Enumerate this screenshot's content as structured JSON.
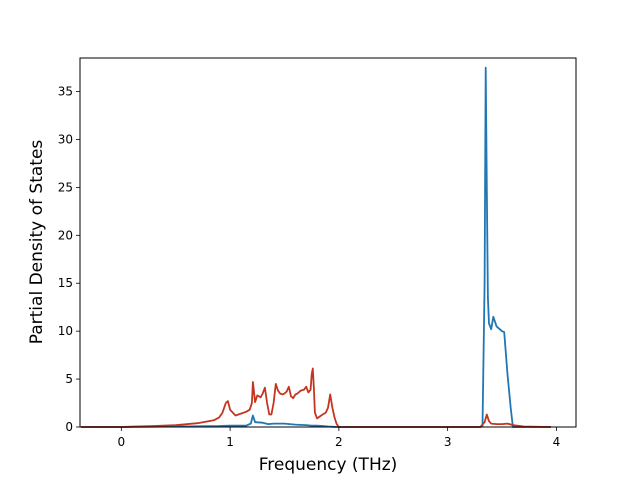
{
  "chart_data": {
    "type": "line",
    "title": "",
    "xlabel": "Frequency (THz)",
    "ylabel": "Partial Density of States",
    "xlim": [
      -0.38,
      4.18
    ],
    "ylim": [
      0,
      38.5
    ],
    "xticks": [
      "0",
      "1",
      "2",
      "3",
      "4"
    ],
    "yticks": [
      "0",
      "5",
      "10",
      "15",
      "20",
      "25",
      "30",
      "35"
    ],
    "grid": false,
    "legend": "none",
    "series": [
      {
        "color": "#1f77b4",
        "x": [
          -0.37,
          0.0,
          0.5,
          0.9,
          1.0,
          1.15,
          1.19,
          1.21,
          1.23,
          1.3,
          1.35,
          1.4,
          1.5,
          1.55,
          1.6,
          1.7,
          1.75,
          1.8,
          1.85,
          1.9,
          1.95,
          1.98,
          2.5,
          3.3,
          3.32,
          3.34,
          3.35,
          3.36,
          3.37,
          3.38,
          3.4,
          3.42,
          3.45,
          3.5,
          3.52,
          3.55,
          3.58,
          3.6,
          3.65,
          3.95
        ],
        "y": [
          0,
          0,
          0.05,
          0.1,
          0.15,
          0.15,
          0.35,
          1.2,
          0.5,
          0.45,
          0.3,
          0.35,
          0.35,
          0.3,
          0.25,
          0.2,
          0.15,
          0.15,
          0.1,
          0.05,
          0.02,
          0,
          0,
          0,
          0.1,
          15,
          37.5,
          25,
          13.5,
          10.8,
          10.2,
          11.5,
          10.5,
          10.0,
          9.9,
          5.5,
          2,
          0,
          0,
          0
        ]
      },
      {
        "color": "#c33520",
        "x": [
          -0.37,
          0.0,
          0.3,
          0.5,
          0.7,
          0.85,
          0.9,
          0.93,
          0.96,
          0.98,
          1.0,
          1.05,
          1.1,
          1.15,
          1.18,
          1.2,
          1.21,
          1.23,
          1.25,
          1.28,
          1.3,
          1.32,
          1.34,
          1.36,
          1.38,
          1.4,
          1.42,
          1.44,
          1.46,
          1.48,
          1.5,
          1.52,
          1.54,
          1.56,
          1.58,
          1.6,
          1.62,
          1.65,
          1.68,
          1.7,
          1.72,
          1.74,
          1.75,
          1.76,
          1.77,
          1.78,
          1.8,
          1.85,
          1.88,
          1.9,
          1.92,
          1.94,
          1.96,
          1.98,
          2.0,
          2.5,
          3.3,
          3.34,
          3.36,
          3.38,
          3.4,
          3.45,
          3.5,
          3.55,
          3.6,
          3.7,
          3.95
        ],
        "y": [
          0,
          0,
          0.1,
          0.2,
          0.4,
          0.7,
          1.0,
          1.5,
          2.5,
          2.7,
          1.8,
          1.2,
          1.4,
          1.6,
          1.8,
          2.5,
          4.7,
          2.6,
          3.3,
          3.1,
          3.5,
          4.1,
          2.5,
          1.3,
          1.3,
          2.5,
          4.5,
          3.8,
          3.5,
          3.4,
          3.5,
          3.7,
          4.2,
          3.2,
          3.0,
          3.4,
          3.5,
          3.8,
          3.9,
          4.2,
          3.6,
          3.9,
          5.5,
          6.1,
          4.0,
          1.5,
          0.9,
          1.3,
          1.5,
          2.0,
          3.4,
          2.0,
          1.0,
          0.3,
          0,
          0,
          0,
          0.5,
          1.3,
          0.6,
          0.35,
          0.3,
          0.3,
          0.35,
          0.2,
          0.05,
          0
        ]
      }
    ]
  }
}
